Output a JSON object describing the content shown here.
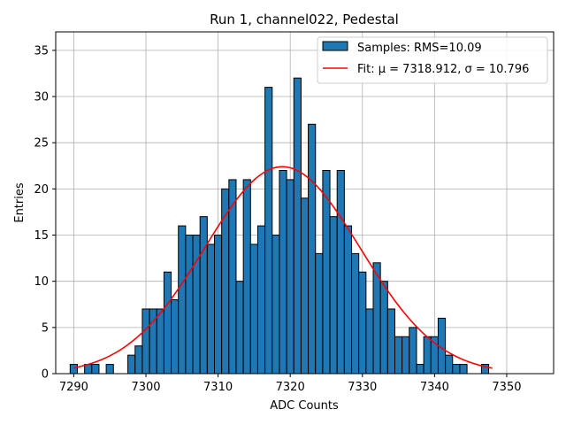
{
  "chart_data": {
    "type": "bar",
    "title": "Run 1, channel022, Pedestal",
    "xlabel": "ADC Counts",
    "ylabel": "Entries",
    "xlim": [
      7287.5,
      7356.5
    ],
    "ylim": [
      0,
      37
    ],
    "xticks": [
      7290,
      7300,
      7310,
      7320,
      7330,
      7340,
      7350
    ],
    "yticks": [
      0,
      5,
      10,
      15,
      20,
      25,
      30,
      35
    ],
    "grid": true,
    "legend_position": "top-right",
    "bin_width": 1,
    "bin_centers": [
      7290,
      7291,
      7292,
      7293,
      7294,
      7295,
      7296,
      7297,
      7298,
      7299,
      7300,
      7301,
      7302,
      7303,
      7304,
      7305,
      7306,
      7307,
      7308,
      7309,
      7310,
      7311,
      7312,
      7313,
      7314,
      7315,
      7316,
      7317,
      7318,
      7319,
      7320,
      7321,
      7322,
      7323,
      7324,
      7325,
      7326,
      7327,
      7328,
      7329,
      7330,
      7331,
      7332,
      7333,
      7334,
      7335,
      7336,
      7337,
      7338,
      7339,
      7340,
      7341,
      7342,
      7343,
      7344,
      7345,
      7346,
      7347
    ],
    "counts": [
      1,
      0,
      1,
      1,
      0,
      1,
      0,
      0,
      2,
      3,
      7,
      7,
      7,
      11,
      8,
      16,
      15,
      15,
      17,
      14,
      15,
      20,
      21,
      10,
      21,
      14,
      16,
      31,
      15,
      22,
      21,
      32,
      19,
      27,
      13,
      22,
      17,
      22,
      16,
      13,
      11,
      7,
      12,
      10,
      7,
      4,
      4,
      5,
      1,
      4,
      4,
      6,
      2,
      1,
      1,
      0,
      0,
      1
    ],
    "series": [
      {
        "name": "Samples: RMS=10.09",
        "color": "#1f77b4",
        "edgecolor": "#000000"
      },
      {
        "name": "Fit: μ = 7318.912, σ = 10.796",
        "color": "#ff0000",
        "mu": 7318.912,
        "sigma": 10.796,
        "amplitude": 22.4,
        "x_range": [
          7290,
          7348
        ]
      }
    ]
  }
}
